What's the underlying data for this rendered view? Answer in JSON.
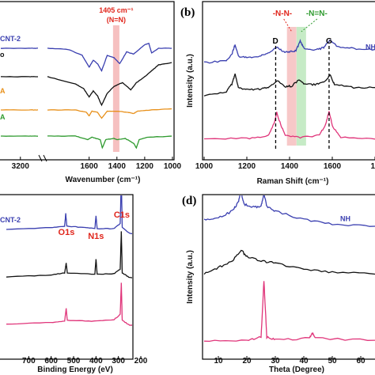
{
  "colors": {
    "blue": "#3a3fb0",
    "black": "#111111",
    "orange": "#e8901a",
    "green": "#2e9a2e",
    "pink": "#e0357a",
    "red": "#e0251b",
    "band_red": "#f4b0b0",
    "band_green": "#b8e6b8"
  },
  "chart_data": [
    {
      "panel": "a",
      "type": "line",
      "xlabel": "Wavenumber (cm⁻¹)",
      "ylabel": "",
      "xlim": [
        3700,
        1000
      ],
      "reversed_x": true,
      "axis_break": [
        2800,
        1900
      ],
      "x_ticks": [
        "3200",
        "1600",
        "1400",
        "1200",
        "1000"
      ],
      "annotation": {
        "line1": "1405 cm⁻¹",
        "line2": "(N=N)",
        "x": 1405
      },
      "series": [
        {
          "name": "CNT-2",
          "color": "blue",
          "offset": 3.3,
          "points": [
            [
              3700,
              1.0
            ],
            [
              3000,
              1.0
            ],
            [
              2800,
              1.0
            ],
            [
              1900,
              1.0
            ],
            [
              1750,
              0.95
            ],
            [
              1650,
              0.7
            ],
            [
              1600,
              0.2
            ],
            [
              1570,
              0.5
            ],
            [
              1540,
              0.35
            ],
            [
              1510,
              0.05
            ],
            [
              1470,
              0.7
            ],
            [
              1420,
              0.6
            ],
            [
              1380,
              0.35
            ],
            [
              1330,
              0.85
            ],
            [
              1280,
              0.75
            ],
            [
              1200,
              1.15
            ],
            [
              1170,
              1.2
            ],
            [
              1150,
              0.8
            ],
            [
              1100,
              1.0
            ],
            [
              1000,
              1.0
            ]
          ]
        },
        {
          "name": "",
          "color": "black",
          "offset": 2.1,
          "points": [
            [
              3700,
              1.0
            ],
            [
              3000,
              1.0
            ],
            [
              2800,
              1.0
            ],
            [
              1900,
              1.0
            ],
            [
              1700,
              0.7
            ],
            [
              1640,
              0.5
            ],
            [
              1600,
              0.15
            ],
            [
              1570,
              0.4
            ],
            [
              1540,
              0.2
            ],
            [
              1510,
              -0.2
            ],
            [
              1470,
              0.3
            ],
            [
              1420,
              0.6
            ],
            [
              1360,
              0.75
            ],
            [
              1300,
              0.45
            ],
            [
              1260,
              0.75
            ],
            [
              1200,
              1.0
            ],
            [
              1150,
              1.25
            ],
            [
              1100,
              1.5
            ],
            [
              1000,
              1.6
            ]
          ]
        },
        {
          "name": "A",
          "color": "orange",
          "offset": 1.1,
          "points": [
            [
              3700,
              0.6
            ],
            [
              3000,
              0.6
            ],
            [
              2800,
              0.6
            ],
            [
              1900,
              0.6
            ],
            [
              1700,
              0.6
            ],
            [
              1620,
              0.5
            ],
            [
              1600,
              0.35
            ],
            [
              1580,
              0.55
            ],
            [
              1540,
              0.5
            ],
            [
              1510,
              0.25
            ],
            [
              1470,
              0.55
            ],
            [
              1400,
              0.55
            ],
            [
              1320,
              0.5
            ],
            [
              1280,
              0.45
            ],
            [
              1250,
              0.55
            ],
            [
              1150,
              0.6
            ],
            [
              1000,
              0.65
            ]
          ]
        },
        {
          "name": "A",
          "color": "green",
          "offset": 0.0,
          "points": [
            [
              3700,
              0.6
            ],
            [
              3000,
              0.6
            ],
            [
              2800,
              0.6
            ],
            [
              1900,
              0.6
            ],
            [
              1700,
              0.6
            ],
            [
              1610,
              0.45
            ],
            [
              1580,
              0.55
            ],
            [
              1520,
              0.45
            ],
            [
              1505,
              0.1
            ],
            [
              1480,
              0.45
            ],
            [
              1420,
              0.5
            ],
            [
              1400,
              0.45
            ],
            [
              1340,
              0.5
            ],
            [
              1280,
              0.3
            ],
            [
              1260,
              0.1
            ],
            [
              1240,
              0.45
            ],
            [
              1180,
              0.55
            ],
            [
              1000,
              0.6
            ]
          ]
        }
      ]
    },
    {
      "panel": "b",
      "type": "line",
      "xlabel": "Raman Shift (cm⁻¹)",
      "ylabel": "Intensity (a.u.)",
      "xlim": [
        1000,
        1800
      ],
      "x_ticks": [
        "1000",
        "1200",
        "1400",
        "1600",
        "18"
      ],
      "peak_labels": [
        {
          "text": "D",
          "x": 1335
        },
        {
          "text": "G",
          "x": 1585
        }
      ],
      "band_labels": [
        {
          "text": "-N-N-",
          "x": 1410,
          "color": "red"
        },
        {
          "text": "-N=N-",
          "x": 1455,
          "color": "green"
        }
      ],
      "series": [
        {
          "name": "NH",
          "color": "blue",
          "offset": 2.1,
          "points": [
            [
              1000,
              0.3
            ],
            [
              1100,
              0.35
            ],
            [
              1130,
              0.55
            ],
            [
              1145,
              0.85
            ],
            [
              1160,
              0.5
            ],
            [
              1200,
              0.45
            ],
            [
              1260,
              0.5
            ],
            [
              1300,
              0.58
            ],
            [
              1340,
              0.78
            ],
            [
              1370,
              0.62
            ],
            [
              1400,
              0.62
            ],
            [
              1430,
              0.66
            ],
            [
              1450,
              0.95
            ],
            [
              1470,
              0.7
            ],
            [
              1520,
              0.68
            ],
            [
              1560,
              0.75
            ],
            [
              1590,
              0.98
            ],
            [
              1620,
              0.8
            ],
            [
              1700,
              0.72
            ],
            [
              1800,
              0.7
            ]
          ]
        },
        {
          "name": "",
          "color": "black",
          "offset": 1.1,
          "points": [
            [
              1000,
              0.3
            ],
            [
              1100,
              0.4
            ],
            [
              1130,
              0.65
            ],
            [
              1145,
              0.95
            ],
            [
              1160,
              0.55
            ],
            [
              1200,
              0.5
            ],
            [
              1260,
              0.5
            ],
            [
              1300,
              0.55
            ],
            [
              1345,
              0.75
            ],
            [
              1380,
              0.58
            ],
            [
              1410,
              0.6
            ],
            [
              1445,
              0.78
            ],
            [
              1470,
              0.65
            ],
            [
              1520,
              0.64
            ],
            [
              1560,
              0.7
            ],
            [
              1590,
              0.92
            ],
            [
              1610,
              0.65
            ],
            [
              1700,
              0.55
            ],
            [
              1800,
              0.55
            ]
          ]
        },
        {
          "name": "",
          "color": "pink",
          "offset": 0.0,
          "points": [
            [
              1000,
              0.12
            ],
            [
              1200,
              0.12
            ],
            [
              1300,
              0.2
            ],
            [
              1330,
              0.6
            ],
            [
              1340,
              0.9
            ],
            [
              1355,
              0.6
            ],
            [
              1380,
              0.2
            ],
            [
              1450,
              0.15
            ],
            [
              1540,
              0.22
            ],
            [
              1570,
              0.55
            ],
            [
              1585,
              0.95
            ],
            [
              1600,
              0.5
            ],
            [
              1640,
              0.15
            ],
            [
              1800,
              0.1
            ]
          ]
        }
      ]
    },
    {
      "panel": "c",
      "type": "line",
      "xlabel": "Binding Energy (eV)",
      "ylabel": "",
      "xlim": [
        800,
        200
      ],
      "reversed_x": true,
      "x_ticks": [
        "700",
        "600",
        "500",
        "400",
        "300",
        "200"
      ],
      "peak_labels": [
        {
          "text": "O1s",
          "x": 532
        },
        {
          "text": "N1s",
          "x": 400
        },
        {
          "text": "C1s",
          "x": 285
        }
      ],
      "series": [
        {
          "name": "CNT-2",
          "color": "blue",
          "offset": 2.3,
          "points": [
            [
              800,
              0.3
            ],
            [
              600,
              0.35
            ],
            [
              540,
              0.38
            ],
            [
              535,
              0.7
            ],
            [
              530,
              0.38
            ],
            [
              450,
              0.35
            ],
            [
              405,
              0.32
            ],
            [
              400,
              0.65
            ],
            [
              395,
              0.32
            ],
            [
              320,
              0.32
            ],
            [
              292,
              0.45
            ],
            [
              287,
              1.6
            ],
            [
              283,
              0.35
            ],
            [
              250,
              0.2
            ],
            [
              200,
              0.15
            ]
          ]
        },
        {
          "name": "",
          "color": "black",
          "offset": 1.2,
          "points": [
            [
              800,
              0.2
            ],
            [
              600,
              0.25
            ],
            [
              540,
              0.3
            ],
            [
              533,
              0.55
            ],
            [
              528,
              0.3
            ],
            [
              405,
              0.27
            ],
            [
              400,
              0.65
            ],
            [
              395,
              0.27
            ],
            [
              320,
              0.28
            ],
            [
              292,
              0.4
            ],
            [
              287,
              1.35
            ],
            [
              283,
              0.3
            ],
            [
              250,
              0.18
            ],
            [
              200,
              0.15
            ]
          ]
        },
        {
          "name": "",
          "color": "pink",
          "offset": 0.0,
          "points": [
            [
              800,
              0.2
            ],
            [
              600,
              0.25
            ],
            [
              540,
              0.28
            ],
            [
              533,
              0.6
            ],
            [
              528,
              0.3
            ],
            [
              420,
              0.28
            ],
            [
              320,
              0.32
            ],
            [
              292,
              0.45
            ],
            [
              287,
              1.25
            ],
            [
              283,
              0.3
            ],
            [
              250,
              0.18
            ],
            [
              200,
              0.15
            ]
          ]
        }
      ]
    },
    {
      "panel": "d",
      "type": "line",
      "xlabel": "Theta (Degree)",
      "ylabel": "Intensity (a.u.)",
      "xlim": [
        5,
        65
      ],
      "x_ticks": [
        "10",
        "20",
        "30",
        "40",
        "50",
        "60"
      ],
      "series": [
        {
          "name": "NH",
          "color": "blue",
          "offset": 2.2,
          "points": [
            [
              5,
              0.75
            ],
            [
              10,
              0.8
            ],
            [
              15,
              0.95
            ],
            [
              17,
              1.15
            ],
            [
              18,
              1.4
            ],
            [
              19,
              1.1
            ],
            [
              22,
              1.05
            ],
            [
              25,
              1.05
            ],
            [
              26,
              1.35
            ],
            [
              27,
              1.05
            ],
            [
              30,
              0.95
            ],
            [
              40,
              0.75
            ],
            [
              50,
              0.65
            ],
            [
              65,
              0.6
            ]
          ]
        },
        {
          "name": "",
          "color": "black",
          "offset": 1.1,
          "points": [
            [
              5,
              0.6
            ],
            [
              10,
              0.75
            ],
            [
              15,
              0.9
            ],
            [
              18,
              1.15
            ],
            [
              20,
              1.0
            ],
            [
              25,
              0.9
            ],
            [
              30,
              0.85
            ],
            [
              40,
              0.7
            ],
            [
              50,
              0.65
            ],
            [
              65,
              0.6
            ]
          ]
        },
        {
          "name": "",
          "color": "pink",
          "offset": 0.0,
          "points": [
            [
              5,
              0.15
            ],
            [
              20,
              0.18
            ],
            [
              25,
              0.25
            ],
            [
              26,
              1.55
            ],
            [
              27,
              0.25
            ],
            [
              30,
              0.2
            ],
            [
              42,
              0.22
            ],
            [
              43,
              0.35
            ],
            [
              44,
              0.22
            ],
            [
              65,
              0.18
            ]
          ]
        }
      ]
    }
  ],
  "panel_letters": {
    "b": "(b)",
    "d": "(d)"
  },
  "dashes": {
    "line": "- -",
    "marker": "o"
  }
}
